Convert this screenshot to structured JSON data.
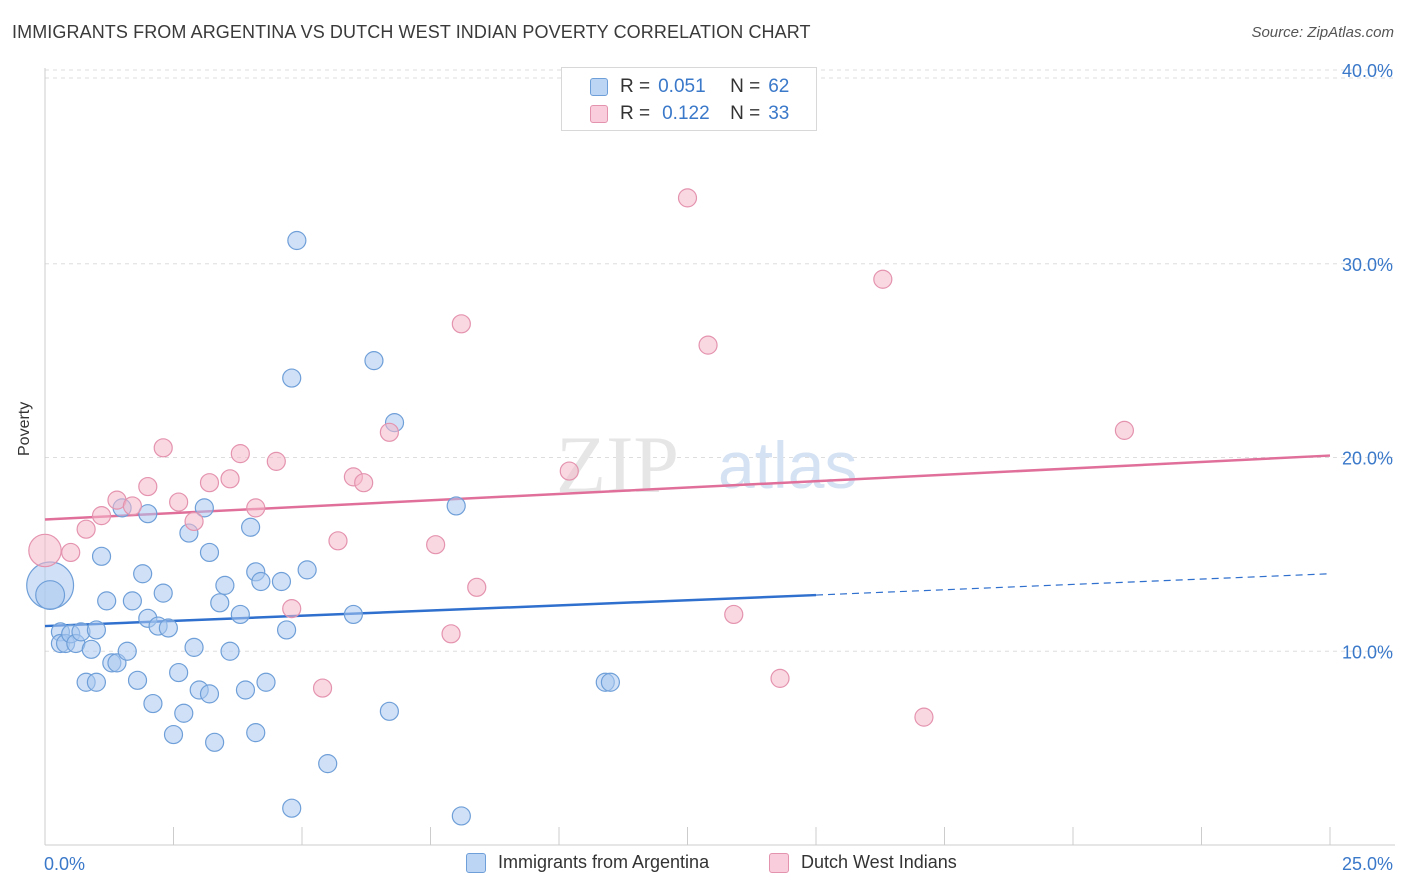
{
  "title": "IMMIGRANTS FROM ARGENTINA VS DUTCH WEST INDIAN POVERTY CORRELATION CHART",
  "source": "Source: ZipAtlas.com",
  "watermark": {
    "zip": "ZIP",
    "atlas": "atlas"
  },
  "legend": {
    "r_label": "R =",
    "n_label": "N =",
    "rows": [
      {
        "r": "0.051",
        "n": "62"
      },
      {
        "r": "0.122",
        "n": "33"
      }
    ]
  },
  "colors": {
    "blue_fill": "#a9c8f0",
    "blue_stroke": "#6f9fd8",
    "blue_line": "#2f6fcd",
    "pink_fill": "#f6b8cb",
    "pink_stroke": "#e493ae",
    "pink_line": "#e0709a",
    "tick_text": "#3a78c9",
    "grid": "#dddddd"
  },
  "chart_data": {
    "type": "scatter",
    "title": "IMMIGRANTS FROM ARGENTINA VS DUTCH WEST INDIAN POVERTY CORRELATION CHART",
    "xlabel": "",
    "ylabel": "Poverty",
    "xlim": [
      0,
      25
    ],
    "ylim": [
      0,
      40
    ],
    "x_tick_labels": [
      "0.0%",
      "25.0%"
    ],
    "y_ticks": [
      10,
      20,
      30,
      40
    ],
    "y_tick_labels": [
      "10.0%",
      "20.0%",
      "30.0%",
      "40.0%"
    ],
    "grid": true,
    "legend_position": "bottom",
    "series": [
      {
        "name": "Immigrants from Argentina",
        "color": "#a9c8f0",
        "points": [
          [
            0.1,
            13.4,
            2.6
          ],
          [
            0.1,
            12.9,
            1.6
          ],
          [
            0.3,
            11.0,
            1
          ],
          [
            0.3,
            10.4,
            1
          ],
          [
            0.4,
            10.4,
            1
          ],
          [
            0.5,
            10.9,
            1
          ],
          [
            0.6,
            10.4,
            1
          ],
          [
            0.7,
            11.0,
            1
          ],
          [
            0.8,
            8.4,
            1
          ],
          [
            0.9,
            10.1,
            1
          ],
          [
            1.0,
            11.1,
            1
          ],
          [
            1.0,
            8.4,
            1
          ],
          [
            1.1,
            14.9,
            1
          ],
          [
            1.2,
            12.6,
            1
          ],
          [
            1.3,
            9.4,
            1
          ],
          [
            1.4,
            9.4,
            1
          ],
          [
            1.5,
            17.4,
            1
          ],
          [
            1.6,
            10.0,
            1
          ],
          [
            1.7,
            12.6,
            1
          ],
          [
            1.8,
            8.5,
            1
          ],
          [
            1.9,
            14.0,
            1
          ],
          [
            2.0,
            11.7,
            1
          ],
          [
            2.0,
            17.1,
            1
          ],
          [
            2.1,
            7.3,
            1
          ],
          [
            2.2,
            11.3,
            1
          ],
          [
            2.3,
            13.0,
            1
          ],
          [
            2.4,
            11.2,
            1
          ],
          [
            2.5,
            5.7,
            1
          ],
          [
            2.6,
            8.9,
            1
          ],
          [
            2.7,
            6.8,
            1
          ],
          [
            2.8,
            16.1,
            1
          ],
          [
            2.9,
            10.2,
            1
          ],
          [
            3.0,
            8.0,
            1
          ],
          [
            3.1,
            17.4,
            1
          ],
          [
            3.2,
            7.8,
            1
          ],
          [
            3.2,
            15.1,
            1
          ],
          [
            3.3,
            5.3,
            1
          ],
          [
            3.4,
            12.5,
            1
          ],
          [
            3.5,
            13.4,
            1
          ],
          [
            3.6,
            10.0,
            1
          ],
          [
            3.8,
            11.9,
            1
          ],
          [
            3.9,
            8.0,
            1
          ],
          [
            4.0,
            16.4,
            1
          ],
          [
            4.1,
            14.1,
            1
          ],
          [
            4.1,
            5.8,
            1
          ],
          [
            4.2,
            13.6,
            1
          ],
          [
            4.3,
            8.4,
            1
          ],
          [
            4.6,
            13.6,
            1
          ],
          [
            4.7,
            11.1,
            1
          ],
          [
            4.8,
            1.9,
            1
          ],
          [
            4.8,
            24.1,
            1
          ],
          [
            4.9,
            31.2,
            1
          ],
          [
            5.1,
            14.2,
            1
          ],
          [
            5.5,
            4.2,
            1
          ],
          [
            6.0,
            11.9,
            1
          ],
          [
            6.4,
            25.0,
            1
          ],
          [
            6.7,
            6.9,
            1
          ],
          [
            6.8,
            21.8,
            1
          ],
          [
            8.0,
            17.5,
            1
          ],
          [
            8.1,
            1.5,
            1
          ],
          [
            10.9,
            8.4,
            1
          ],
          [
            11.0,
            8.4,
            1
          ]
        ]
      },
      {
        "name": "Dutch West Indians",
        "color": "#f6b8cb",
        "points": [
          [
            0.0,
            15.2,
            1.8
          ],
          [
            0.5,
            15.1,
            1
          ],
          [
            0.8,
            16.3,
            1
          ],
          [
            1.1,
            17.0,
            1
          ],
          [
            1.4,
            17.8,
            1
          ],
          [
            1.7,
            17.5,
            1
          ],
          [
            2.0,
            18.5,
            1
          ],
          [
            2.3,
            20.5,
            1
          ],
          [
            2.6,
            17.7,
            1
          ],
          [
            2.9,
            16.7,
            1
          ],
          [
            3.2,
            18.7,
            1
          ],
          [
            3.6,
            18.9,
            1
          ],
          [
            3.8,
            20.2,
            1
          ],
          [
            4.1,
            17.4,
            1
          ],
          [
            4.5,
            19.8,
            1
          ],
          [
            4.8,
            12.2,
            1
          ],
          [
            5.4,
            8.1,
            1
          ],
          [
            5.7,
            15.7,
            1
          ],
          [
            6.0,
            19.0,
            1
          ],
          [
            6.2,
            18.7,
            1
          ],
          [
            6.7,
            21.3,
            1
          ],
          [
            7.6,
            15.5,
            1
          ],
          [
            7.9,
            10.9,
            1
          ],
          [
            8.1,
            26.9,
            1
          ],
          [
            8.4,
            13.3,
            1
          ],
          [
            10.2,
            19.3,
            1
          ],
          [
            12.5,
            33.4,
            1
          ],
          [
            12.9,
            25.8,
            1
          ],
          [
            13.4,
            11.9,
            1
          ],
          [
            14.3,
            8.6,
            1
          ],
          [
            16.3,
            29.2,
            1
          ],
          [
            17.1,
            6.6,
            1
          ],
          [
            21.0,
            21.4,
            1
          ]
        ]
      }
    ],
    "trendlines": [
      {
        "series": "Immigrants from Argentina",
        "x": [
          0,
          15
        ],
        "y": [
          11.3,
          12.9
        ],
        "dashed_extension": {
          "x": [
            15,
            25
          ],
          "y": [
            12.9,
            14.0
          ]
        }
      },
      {
        "series": "Dutch West Indians",
        "x": [
          0,
          25
        ],
        "y": [
          16.8,
          20.1
        ]
      }
    ]
  }
}
